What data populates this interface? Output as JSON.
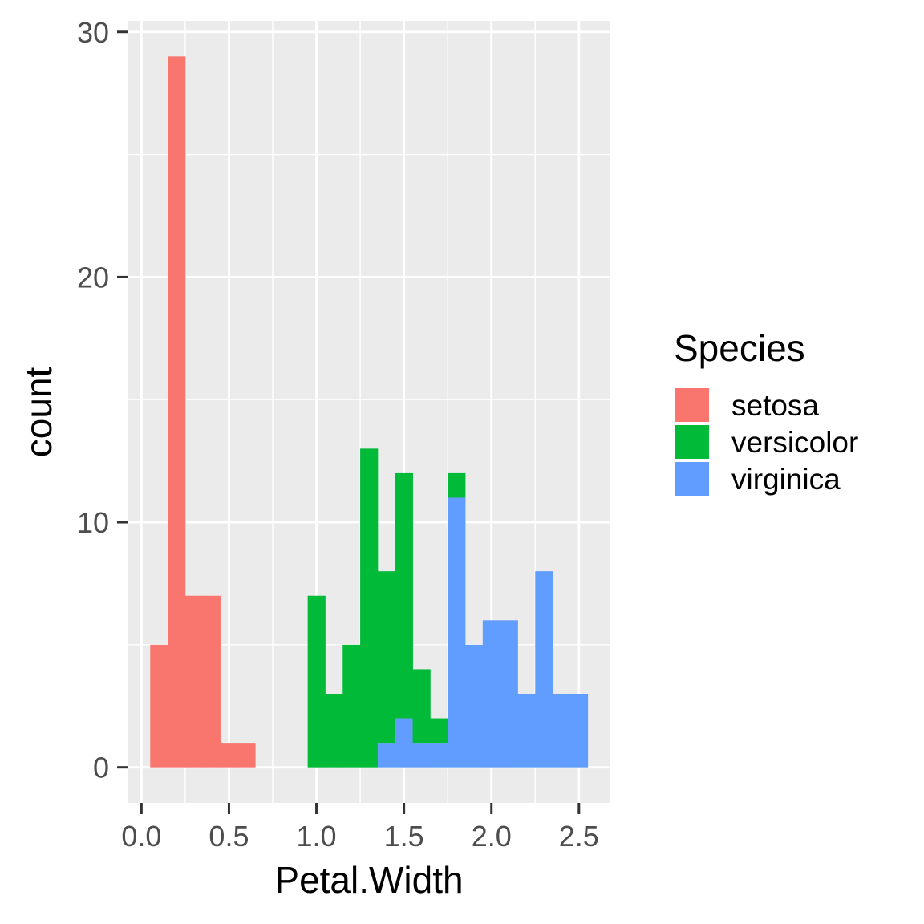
{
  "chart_data": {
    "type": "bar",
    "subtype": "stacked-histogram",
    "title": "",
    "xlabel": "Petal.Width",
    "ylabel": "count",
    "xlim": [
      -0.075,
      2.675
    ],
    "ylim": [
      -1.45,
      30.45
    ],
    "bin_width": 0.1,
    "x_ticks": [
      {
        "value": 0.0,
        "label": "0.0"
      },
      {
        "value": 0.5,
        "label": "0.5"
      },
      {
        "value": 1.0,
        "label": "1.0"
      },
      {
        "value": 1.5,
        "label": "1.5"
      },
      {
        "value": 2.0,
        "label": "2.0"
      },
      {
        "value": 2.5,
        "label": "2.5"
      }
    ],
    "y_ticks": [
      {
        "value": 0,
        "label": "0"
      },
      {
        "value": 10,
        "label": "10"
      },
      {
        "value": 20,
        "label": "20"
      },
      {
        "value": 30,
        "label": "30"
      }
    ],
    "x_bin_starts": [
      0.05,
      0.15,
      0.25,
      0.35,
      0.45,
      0.55,
      0.65,
      0.75,
      0.85,
      0.95,
      1.05,
      1.15,
      1.25,
      1.35,
      1.45,
      1.55,
      1.65,
      1.75,
      1.85,
      1.95,
      2.05,
      2.15,
      2.25,
      2.35,
      2.45
    ],
    "legend": {
      "title": "Species",
      "position": "right"
    },
    "grid": true,
    "panel_background": "#EBEBEB",
    "series": [
      {
        "name": "setosa",
        "color": "#F8766D",
        "values": [
          5,
          29,
          7,
          7,
          1,
          1,
          0,
          0,
          0,
          0,
          0,
          0,
          0,
          0,
          0,
          0,
          0,
          0,
          0,
          0,
          0,
          0,
          0,
          0,
          0
        ]
      },
      {
        "name": "versicolor",
        "color": "#00BA38",
        "values": [
          0,
          0,
          0,
          0,
          0,
          0,
          0,
          0,
          0,
          7,
          3,
          5,
          13,
          7,
          10,
          3,
          1,
          1,
          0,
          0,
          0,
          0,
          0,
          0,
          0
        ]
      },
      {
        "name": "virginica",
        "color": "#619CFF",
        "values": [
          0,
          0,
          0,
          0,
          0,
          0,
          0,
          0,
          0,
          0,
          0,
          0,
          0,
          1,
          2,
          1,
          1,
          11,
          5,
          6,
          6,
          3,
          8,
          3,
          3
        ]
      }
    ]
  }
}
